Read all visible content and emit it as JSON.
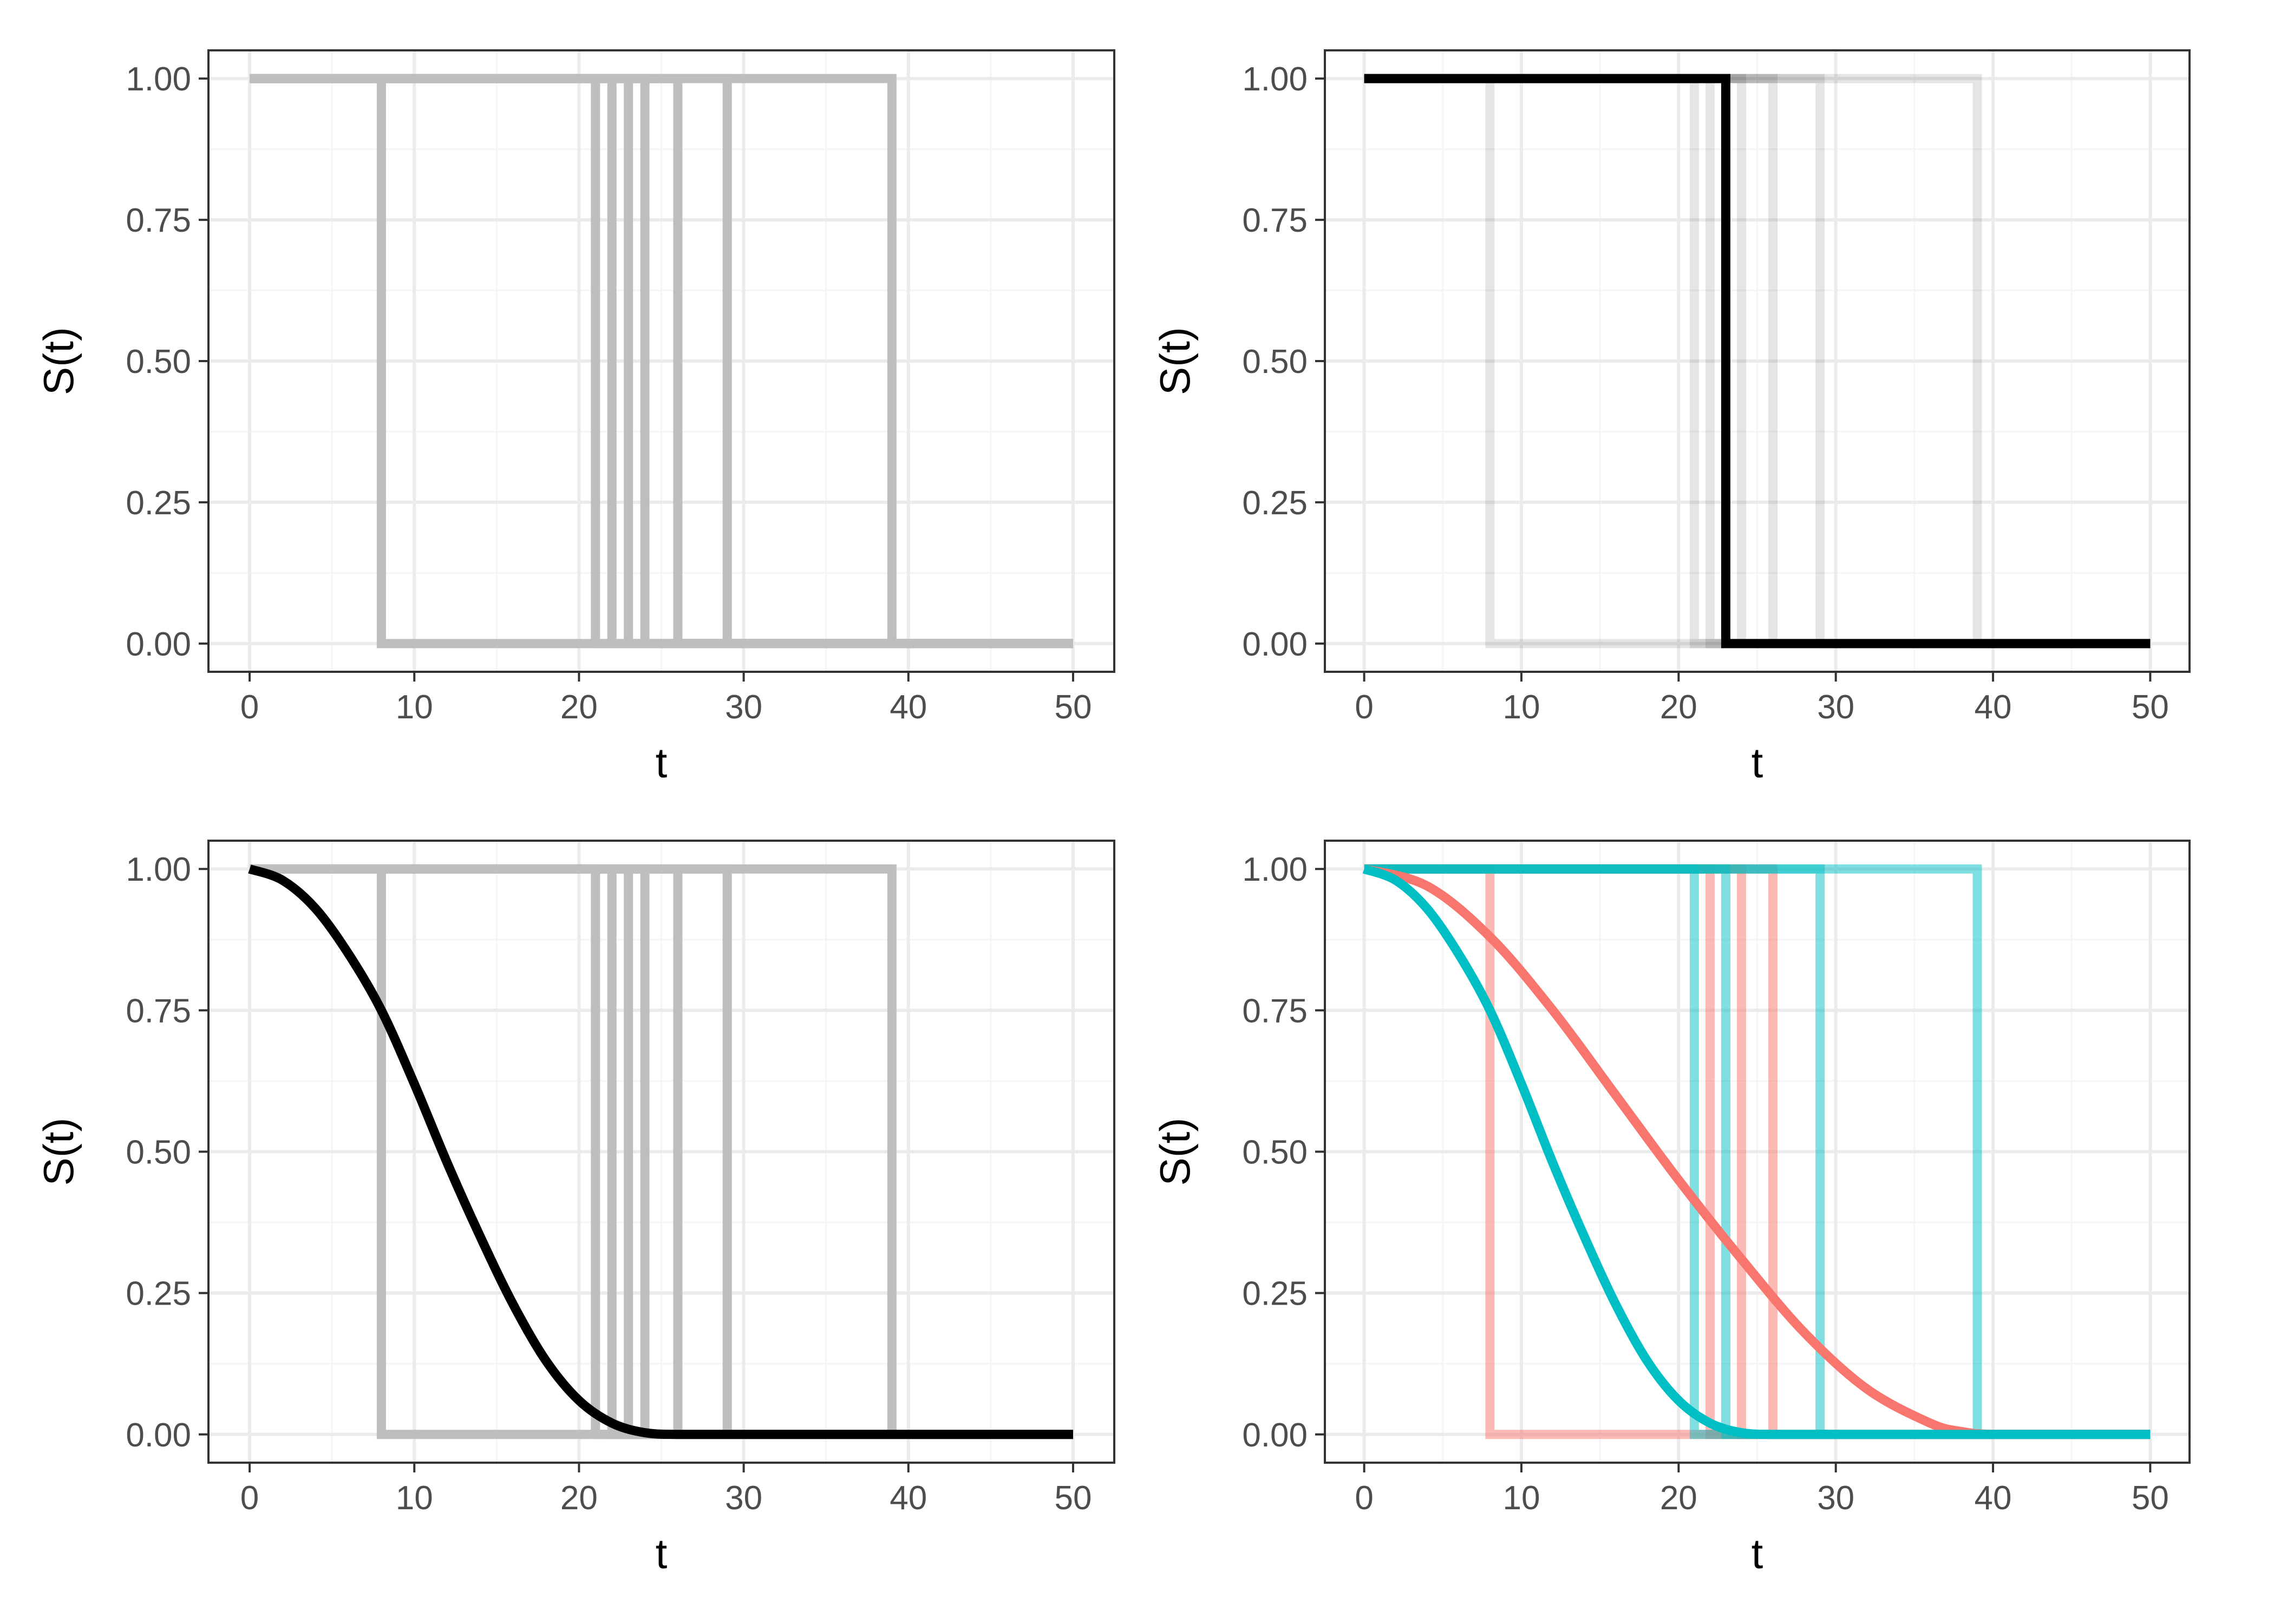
{
  "colors": {
    "panel_border": "#333333",
    "grid_major": "#ebebeb",
    "grid_minor": "#f5f5f5",
    "tick_text": "#4d4d4d",
    "axis_title": "#000000",
    "step_gray": "#bebebe",
    "curve_black": "#000000",
    "red": "#f8766d",
    "teal": "#00bfc4"
  },
  "chart_data": [
    {
      "id": "top-left",
      "type": "line",
      "xlabel": "t",
      "ylabel": "S(t)",
      "xlim": [
        0,
        50
      ],
      "ylim": [
        0,
        1
      ],
      "x_ticks": [
        "0",
        "10",
        "20",
        "30",
        "40",
        "50"
      ],
      "y_ticks": [
        "0.00",
        "0.25",
        "0.50",
        "0.75",
        "1.00"
      ],
      "grid": true,
      "series": [
        {
          "kind": "step",
          "event_time": 8,
          "color": "#bebebe",
          "opacity": 1
        },
        {
          "kind": "step",
          "event_time": 21,
          "color": "#bebebe",
          "opacity": 1
        },
        {
          "kind": "step",
          "event_time": 22,
          "color": "#bebebe",
          "opacity": 1
        },
        {
          "kind": "step",
          "event_time": 23,
          "color": "#bebebe",
          "opacity": 1
        },
        {
          "kind": "step",
          "event_time": 24,
          "color": "#bebebe",
          "opacity": 1
        },
        {
          "kind": "step",
          "event_time": 26,
          "color": "#bebebe",
          "opacity": 1
        },
        {
          "kind": "step",
          "event_time": 29,
          "color": "#bebebe",
          "opacity": 1
        },
        {
          "kind": "step",
          "event_time": 39,
          "color": "#bebebe",
          "opacity": 1
        }
      ]
    },
    {
      "id": "top-right",
      "type": "line",
      "xlabel": "t",
      "ylabel": "S(t)",
      "xlim": [
        0,
        50
      ],
      "ylim": [
        0,
        1
      ],
      "x_ticks": [
        "0",
        "10",
        "20",
        "30",
        "40",
        "50"
      ],
      "y_ticks": [
        "0.00",
        "0.25",
        "0.50",
        "0.75",
        "1.00"
      ],
      "grid": true,
      "series": [
        {
          "kind": "step",
          "event_time": 8,
          "color": "#000000",
          "opacity": 0.1
        },
        {
          "kind": "step",
          "event_time": 21,
          "color": "#000000",
          "opacity": 0.1
        },
        {
          "kind": "step",
          "event_time": 22,
          "color": "#000000",
          "opacity": 0.1
        },
        {
          "kind": "step",
          "event_time": 24,
          "color": "#000000",
          "opacity": 0.1
        },
        {
          "kind": "step",
          "event_time": 26,
          "color": "#000000",
          "opacity": 0.1
        },
        {
          "kind": "step",
          "event_time": 29,
          "color": "#000000",
          "opacity": 0.1
        },
        {
          "kind": "step",
          "event_time": 39,
          "color": "#000000",
          "opacity": 0.1
        },
        {
          "kind": "step",
          "event_time": 23,
          "color": "#000000",
          "opacity": 1
        }
      ]
    },
    {
      "id": "bottom-left",
      "type": "line",
      "xlabel": "t",
      "ylabel": "S(t)",
      "xlim": [
        0,
        50
      ],
      "ylim": [
        0,
        1
      ],
      "x_ticks": [
        "0",
        "10",
        "20",
        "30",
        "40",
        "50"
      ],
      "y_ticks": [
        "0.00",
        "0.25",
        "0.50",
        "0.75",
        "1.00"
      ],
      "grid": true,
      "series": [
        {
          "kind": "step",
          "event_time": 8,
          "color": "#bebebe",
          "opacity": 1
        },
        {
          "kind": "step",
          "event_time": 21,
          "color": "#bebebe",
          "opacity": 1
        },
        {
          "kind": "step",
          "event_time": 22,
          "color": "#bebebe",
          "opacity": 1
        },
        {
          "kind": "step",
          "event_time": 23,
          "color": "#bebebe",
          "opacity": 1
        },
        {
          "kind": "step",
          "event_time": 24,
          "color": "#bebebe",
          "opacity": 1
        },
        {
          "kind": "step",
          "event_time": 26,
          "color": "#bebebe",
          "opacity": 1
        },
        {
          "kind": "step",
          "event_time": 29,
          "color": "#bebebe",
          "opacity": 1
        },
        {
          "kind": "step",
          "event_time": 39,
          "color": "#bebebe",
          "opacity": 1
        },
        {
          "kind": "curve",
          "color": "#000000",
          "opacity": 1,
          "x": [
            0,
            2,
            4,
            6,
            8,
            10,
            12,
            14,
            16,
            18,
            20,
            22,
            24,
            26,
            30,
            40,
            50
          ],
          "y": [
            1.0,
            0.98,
            0.93,
            0.85,
            0.75,
            0.62,
            0.48,
            0.35,
            0.23,
            0.13,
            0.06,
            0.02,
            0.003,
            0.0,
            0.0,
            0.0,
            0.0
          ]
        }
      ]
    },
    {
      "id": "bottom-right",
      "type": "line",
      "xlabel": "t",
      "ylabel": "S(t)",
      "xlim": [
        0,
        50
      ],
      "ylim": [
        0,
        1
      ],
      "x_ticks": [
        "0",
        "10",
        "20",
        "30",
        "40",
        "50"
      ],
      "y_ticks": [
        "0.00",
        "0.25",
        "0.50",
        "0.75",
        "1.00"
      ],
      "grid": true,
      "series": [
        {
          "kind": "step",
          "event_time": 8,
          "color": "#f8766d",
          "opacity": 0.5
        },
        {
          "kind": "step",
          "event_time": 22,
          "color": "#f8766d",
          "opacity": 0.5
        },
        {
          "kind": "step",
          "event_time": 24,
          "color": "#f8766d",
          "opacity": 0.5
        },
        {
          "kind": "step",
          "event_time": 26,
          "color": "#f8766d",
          "opacity": 0.5
        },
        {
          "kind": "step",
          "event_time": 21,
          "color": "#00bfc4",
          "opacity": 0.5
        },
        {
          "kind": "step",
          "event_time": 23,
          "color": "#00bfc4",
          "opacity": 0.5
        },
        {
          "kind": "step",
          "event_time": 29,
          "color": "#00bfc4",
          "opacity": 0.5
        },
        {
          "kind": "step",
          "event_time": 39,
          "color": "#00bfc4",
          "opacity": 0.5
        },
        {
          "kind": "curve",
          "color": "#f8766d",
          "opacity": 1,
          "x": [
            0,
            4,
            8,
            12,
            16,
            20,
            24,
            28,
            32,
            36,
            38,
            40,
            45,
            50
          ],
          "y": [
            1.0,
            0.97,
            0.88,
            0.75,
            0.6,
            0.45,
            0.31,
            0.18,
            0.08,
            0.02,
            0.005,
            0.0,
            0.0,
            0.0
          ]
        },
        {
          "kind": "curve",
          "color": "#00bfc4",
          "opacity": 1,
          "x": [
            0,
            2,
            4,
            6,
            8,
            10,
            12,
            14,
            16,
            18,
            20,
            22,
            24,
            26,
            30,
            40,
            50
          ],
          "y": [
            1.0,
            0.98,
            0.93,
            0.85,
            0.75,
            0.62,
            0.48,
            0.35,
            0.23,
            0.13,
            0.06,
            0.02,
            0.003,
            0.0,
            0.0,
            0.0,
            0.0
          ]
        }
      ]
    }
  ]
}
